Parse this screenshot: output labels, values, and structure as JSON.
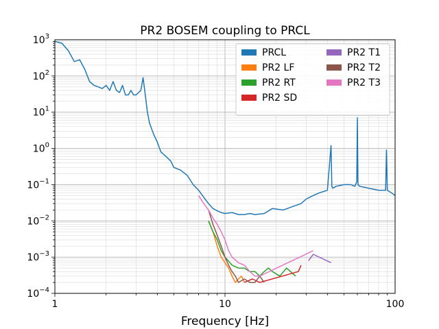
{
  "chart_data": {
    "type": "line",
    "title": "PR2 BOSEM coupling to PRCL",
    "xlabel": "Frequency [Hz]",
    "ylabel": "",
    "xscale": "log",
    "yscale": "log",
    "xlim": [
      1,
      100
    ],
    "ylim": [
      0.0001,
      1000
    ],
    "grid": true,
    "legend_position": "top-right",
    "legend_columns": 2,
    "x_tick_labels": [
      {
        "value": 1,
        "label": "1"
      },
      {
        "value": 10,
        "label": "10"
      },
      {
        "value": 100,
        "label": "100"
      }
    ],
    "y_tick_labels": [
      {
        "value": 0.0001,
        "base": "10",
        "exp": "−4"
      },
      {
        "value": 0.001,
        "base": "10",
        "exp": "−3"
      },
      {
        "value": 0.01,
        "base": "10",
        "exp": "−2"
      },
      {
        "value": 0.1,
        "base": "10",
        "exp": "−1"
      },
      {
        "value": 1,
        "base": "10",
        "exp": "0"
      },
      {
        "value": 10,
        "base": "10",
        "exp": "1"
      },
      {
        "value": 100,
        "base": "10",
        "exp": "2"
      },
      {
        "value": 1000,
        "base": "10",
        "exp": "3"
      }
    ],
    "series": [
      {
        "name": "PRCL",
        "color": "#1f77b4",
        "x": [
          1.0,
          1.1,
          1.2,
          1.3,
          1.4,
          1.5,
          1.6,
          1.7,
          1.8,
          1.9,
          2.0,
          2.1,
          2.2,
          2.3,
          2.4,
          2.5,
          2.6,
          2.7,
          2.8,
          2.9,
          3.0,
          3.2,
          3.3,
          3.4,
          3.5,
          3.6,
          3.8,
          4.0,
          4.2,
          4.5,
          4.8,
          5.0,
          5.5,
          6.0,
          6.5,
          7.0,
          7.5,
          8.0,
          8.5,
          9.0,
          9.5,
          10.0,
          11.0,
          12.0,
          13.0,
          14.0,
          15.0,
          17.0,
          19.0,
          22.0,
          25.0,
          28.0,
          30.0,
          33.0,
          36.0,
          40.0,
          42.0,
          42.5,
          43.0,
          45.0,
          50.0,
          55.0,
          58.0,
          59.5,
          60.0,
          60.5,
          62.0,
          70.0,
          80.0,
          88.0,
          89.0,
          90.0,
          95.0,
          100.0
        ],
        "y": [
          900,
          800,
          500,
          250,
          280,
          150,
          70,
          55,
          50,
          45,
          55,
          40,
          70,
          40,
          35,
          55,
          30,
          30,
          40,
          30,
          30,
          40,
          90,
          30,
          10,
          5,
          2.5,
          1.5,
          0.8,
          0.6,
          0.45,
          0.3,
          0.25,
          0.18,
          0.1,
          0.07,
          0.045,
          0.03,
          0.022,
          0.019,
          0.017,
          0.016,
          0.017,
          0.015,
          0.015,
          0.016,
          0.015,
          0.016,
          0.022,
          0.02,
          0.025,
          0.03,
          0.04,
          0.05,
          0.06,
          0.07,
          1.2,
          0.09,
          0.08,
          0.09,
          0.1,
          0.1,
          0.09,
          0.12,
          7.0,
          0.1,
          0.09,
          0.08,
          0.07,
          0.07,
          0.9,
          0.07,
          0.06,
          0.05
        ]
      },
      {
        "name": "PR2 LF",
        "color": "#ff7f0e",
        "x": [
          8.0,
          8.5,
          9.0,
          9.5,
          10.0,
          10.5,
          11.0,
          11.5,
          12.0,
          12.5,
          13.0
        ],
        "y": [
          0.01,
          0.005,
          0.002,
          0.001,
          0.0007,
          0.0005,
          0.0003,
          0.0002,
          0.00025,
          0.0003,
          0.0002
        ]
      },
      {
        "name": "PR2 RT",
        "color": "#2ca02c",
        "x": [
          8.0,
          8.5,
          9.0,
          9.5,
          10.0,
          11.0,
          12.0,
          13.0,
          14.0,
          15.0,
          16.0,
          17.0,
          18.0,
          19.0,
          21.0,
          23.0,
          26.0
        ],
        "y": [
          0.01,
          0.005,
          0.003,
          0.0015,
          0.001,
          0.0006,
          0.0005,
          0.0005,
          0.0004,
          0.0004,
          0.0003,
          0.0004,
          0.0005,
          0.0004,
          0.0003,
          0.0005,
          0.0003
        ]
      },
      {
        "name": "PR2 SD",
        "color": "#d62728",
        "x": [
          13.0,
          14.5,
          16.0,
          27.0,
          28.0
        ],
        "y": [
          0.0002,
          0.00025,
          0.0002,
          0.0004,
          0.0006
        ]
      },
      {
        "name": "PR2 T1",
        "color": "#9467bd",
        "x": [
          31.0,
          33.0,
          42.0
        ],
        "y": [
          0.0008,
          0.0012,
          0.0007
        ]
      },
      {
        "name": "PR2 T2",
        "color": "#8c564b",
        "x": [
          8.0,
          8.5,
          9.0,
          9.5,
          10.0,
          10.5,
          11.0,
          11.5,
          12.0,
          13.0,
          14.0,
          15.0,
          16.0,
          17.0
        ],
        "y": [
          0.02,
          0.008,
          0.004,
          0.002,
          0.001,
          0.0006,
          0.0004,
          0.0003,
          0.0002,
          0.00025,
          0.0002,
          0.0002,
          0.0003,
          0.0002
        ]
      },
      {
        "name": "PR2 T3",
        "color": "#e377c2",
        "x": [
          7.0,
          7.5,
          8.0,
          8.5,
          9.0,
          9.5,
          10.0,
          10.5,
          11.0,
          12.0,
          13.0,
          14.0,
          15.0,
          16.0,
          33.0
        ],
        "y": [
          0.05,
          0.03,
          0.02,
          0.012,
          0.008,
          0.005,
          0.003,
          0.0015,
          0.001,
          0.0007,
          0.0006,
          0.0004,
          0.0003,
          0.0003,
          0.0015
        ]
      }
    ]
  }
}
